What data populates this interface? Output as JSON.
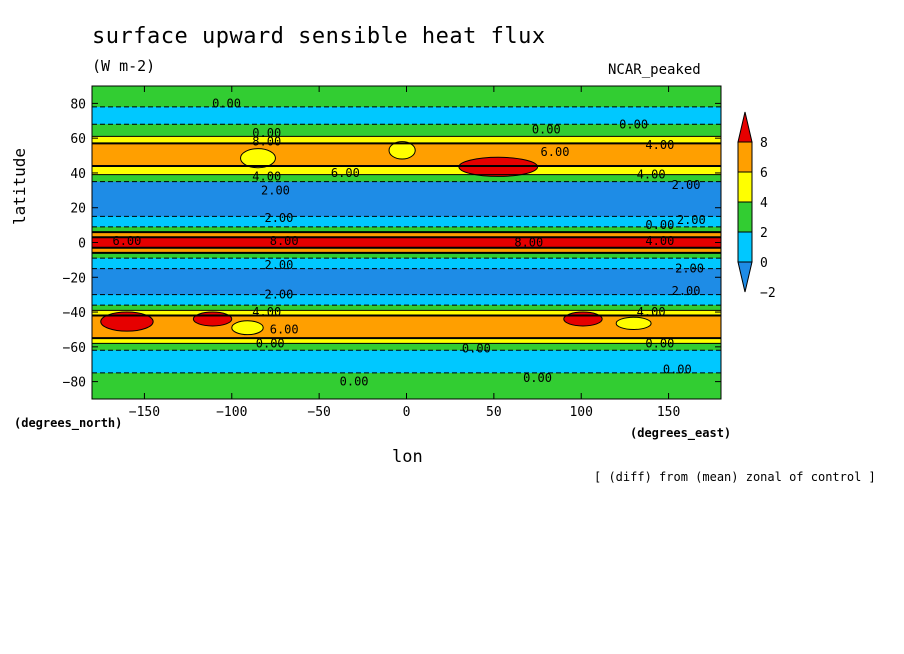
{
  "chart_data": {
    "type": "heatmap",
    "title": "surface upward sensible heat flux",
    "units": "(W m-2)",
    "model_label": "NCAR_peaked",
    "xlabel": "lon",
    "ylabel": "latitude",
    "x_unit_label": "(degrees_east)",
    "y_unit_label": "(degrees_north)",
    "note": "[ (diff) from (mean) zonal of control ]",
    "xlim": [
      -180,
      180
    ],
    "ylim": [
      -90,
      90
    ],
    "x_ticks": [
      -150,
      -100,
      -50,
      0,
      50,
      100,
      150
    ],
    "y_ticks": [
      80,
      60,
      40,
      20,
      0,
      -20,
      -40,
      -60,
      -80
    ],
    "x_tick_labels": [
      "−150",
      "−100",
      "−50",
      "0",
      "50",
      "100",
      "150"
    ],
    "y_tick_labels": [
      "80",
      "60",
      "40",
      "20",
      "0",
      "−20",
      "−40",
      "−60",
      "−80"
    ],
    "colorbar": {
      "levels": [
        -2,
        0,
        2,
        4,
        6,
        8
      ],
      "labels": [
        "−2",
        "0",
        "2",
        "4",
        "6",
        "8"
      ],
      "colors": [
        "#1e8ce6",
        "#00c8ff",
        "#32cd32",
        "#ffff00",
        "#ff9f00",
        "#e60000"
      ],
      "extend": "both"
    },
    "zonal_bands": [
      {
        "lat_min": 78,
        "lat_max": 90,
        "value": 0.5
      },
      {
        "lat_min": 68,
        "lat_max": 78,
        "value": -0.5
      },
      {
        "lat_min": 61,
        "lat_max": 68,
        "value": 0.5
      },
      {
        "lat_min": 57,
        "lat_max": 61,
        "value": 2.5
      },
      {
        "lat_min": 44,
        "lat_max": 57,
        "value": 5
      },
      {
        "lat_min": 39,
        "lat_max": 44,
        "value": 3
      },
      {
        "lat_min": 35,
        "lat_max": 39,
        "value": 1
      },
      {
        "lat_min": 15,
        "lat_max": 35,
        "value": -3
      },
      {
        "lat_min": 9,
        "lat_max": 15,
        "value": -1
      },
      {
        "lat_min": 6,
        "lat_max": 9,
        "value": 1
      },
      {
        "lat_min": 3,
        "lat_max": 6,
        "value": 5
      },
      {
        "lat_min": -3,
        "lat_max": 3,
        "value": 9
      },
      {
        "lat_min": -6,
        "lat_max": -3,
        "value": 5
      },
      {
        "lat_min": -9,
        "lat_max": -6,
        "value": 1
      },
      {
        "lat_min": -15,
        "lat_max": -9,
        "value": -1
      },
      {
        "lat_min": -30,
        "lat_max": -15,
        "value": -3
      },
      {
        "lat_min": -36,
        "lat_max": -30,
        "value": -1
      },
      {
        "lat_min": -39,
        "lat_max": -36,
        "value": 1
      },
      {
        "lat_min": -42,
        "lat_max": -39,
        "value": 3
      },
      {
        "lat_min": -55,
        "lat_max": -42,
        "value": 5
      },
      {
        "lat_min": -58,
        "lat_max": -55,
        "value": 3
      },
      {
        "lat_min": -62,
        "lat_max": -58,
        "value": 0.5
      },
      {
        "lat_min": -75,
        "lat_max": -62,
        "value": -0.5
      },
      {
        "lat_min": -90,
        "lat_max": -75,
        "value": 0.5
      }
    ],
    "patches": [
      {
        "lon_min": 30,
        "lon_max": 75,
        "lat_min": 38,
        "lat_max": 49,
        "value": 9
      },
      {
        "lon_min": -175,
        "lon_max": -145,
        "lat_min": -51,
        "lat_max": -40,
        "value": 9
      },
      {
        "lon_min": -122,
        "lon_max": -100,
        "lat_min": -48,
        "lat_max": -40,
        "value": 9
      },
      {
        "lon_min": 90,
        "lon_max": 112,
        "lat_min": -48,
        "lat_max": -40,
        "value": 9
      },
      {
        "lon_min": -95,
        "lon_max": -75,
        "lat_min": 43,
        "lat_max": 54,
        "value": 3
      },
      {
        "lon_min": -10,
        "lon_max": 5,
        "lat_min": 48,
        "lat_max": 58,
        "value": 3
      },
      {
        "lon_min": 120,
        "lon_max": 140,
        "lat_min": -50,
        "lat_max": -43,
        "value": 3
      },
      {
        "lon_min": -100,
        "lon_max": -82,
        "lat_min": -53,
        "lat_max": -45,
        "value": 3
      }
    ],
    "contour_labels": [
      {
        "text": "0.00",
        "lon": -103,
        "lat": 80
      },
      {
        "text": "0.00",
        "lon": 80,
        "lat": 65
      },
      {
        "text": "0.00",
        "lon": 130,
        "lat": 68
      },
      {
        "text": "0.00",
        "lon": -80,
        "lat": 63
      },
      {
        "text": "8.00",
        "lon": -80,
        "lat": 58
      },
      {
        "text": "6.00",
        "lon": 85,
        "lat": 52
      },
      {
        "text": "4.00",
        "lon": 145,
        "lat": 56
      },
      {
        "text": "6.00",
        "lon": -35,
        "lat": 40
      },
      {
        "text": "4.00",
        "lon": -80,
        "lat": 38
      },
      {
        "text": "2.00",
        "lon": -75,
        "lat": 30
      },
      {
        "text": "4.00",
        "lon": 140,
        "lat": 39
      },
      {
        "text": "2.00",
        "lon": 160,
        "lat": 33
      },
      {
        "text": "2.00",
        "lon": -73,
        "lat": 14
      },
      {
        "text": "0.00",
        "lon": 145,
        "lat": 10
      },
      {
        "text": "2.00",
        "lon": 163,
        "lat": 13
      },
      {
        "text": "6.00",
        "lon": -160,
        "lat": 1
      },
      {
        "text": "8.00",
        "lon": -70,
        "lat": 1
      },
      {
        "text": "8.00",
        "lon": 70,
        "lat": 0
      },
      {
        "text": "4.00",
        "lon": 145,
        "lat": 1
      },
      {
        "text": "2.00",
        "lon": -73,
        "lat": -13
      },
      {
        "text": "2.00",
        "lon": 162,
        "lat": -15
      },
      {
        "text": "2.00",
        "lon": -73,
        "lat": -30
      },
      {
        "text": "2.00",
        "lon": 160,
        "lat": -28
      },
      {
        "text": "4.00",
        "lon": -80,
        "lat": -40
      },
      {
        "text": "6.00",
        "lon": -70,
        "lat": -50
      },
      {
        "text": "4.00",
        "lon": 140,
        "lat": -40
      },
      {
        "text": "0.00",
        "lon": -78,
        "lat": -58
      },
      {
        "text": "0.00",
        "lon": 40,
        "lat": -61
      },
      {
        "text": "0.00",
        "lon": 145,
        "lat": -58
      },
      {
        "text": "0.00",
        "lon": -30,
        "lat": -80
      },
      {
        "text": "0.00",
        "lon": 75,
        "lat": -78
      },
      {
        "text": "0.00",
        "lon": 155,
        "lat": -73
      }
    ]
  }
}
